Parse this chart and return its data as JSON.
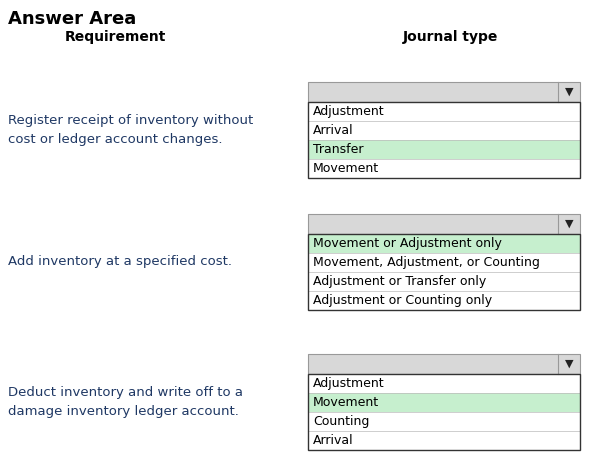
{
  "title": "Answer Area",
  "col1_header": "Requirement",
  "col2_header": "Journal type",
  "bg_color": "#ffffff",
  "dropdown_bg": "#d8d8d8",
  "dropdown_border": "#999999",
  "list_border": "#333333",
  "list_bg": "#ffffff",
  "highlight_bg": "#c6efce",
  "rows": [
    {
      "requirement": "Register receipt of inventory without\ncost or ledger account changes.",
      "items": [
        "Adjustment",
        "Arrival",
        "Transfer",
        "Movement"
      ],
      "highlighted": [
        2
      ]
    },
    {
      "requirement": "Add inventory at a specified cost.",
      "items": [
        "Movement or Adjustment only",
        "Movement, Adjustment, or Counting",
        "Adjustment or Transfer only",
        "Adjustment or Counting only"
      ],
      "highlighted": [
        0
      ]
    },
    {
      "requirement": "Deduct inventory and write off to a\ndamage inventory ledger account.",
      "items": [
        "Adjustment",
        "Movement",
        "Counting",
        "Arrival"
      ],
      "highlighted": [
        1
      ]
    }
  ],
  "req_text_color": "#1f3864",
  "item_text_color": "#000000",
  "item_font_size": 9,
  "req_font_size": 9.5,
  "header_font_size": 10,
  "title_font_size": 13
}
